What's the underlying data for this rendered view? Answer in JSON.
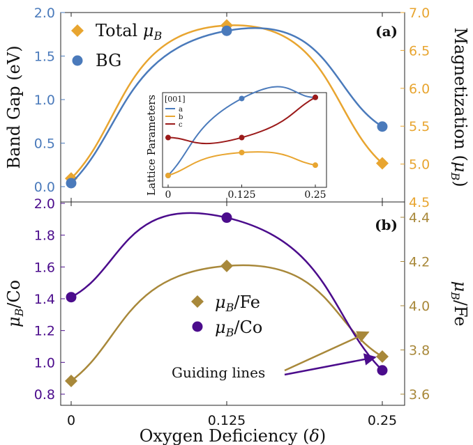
{
  "chart_data": [
    {
      "panel_label": "(a)",
      "type": "line",
      "x": [
        0,
        0.125,
        0.25
      ],
      "x_tick_labels": [
        "0",
        "0.125",
        "0.25"
      ],
      "ylabel": "Band Gap (eV)",
      "ylabel_right": "Magnetization (",
      "ylabel_right_sym": "μ",
      "ylabel_right_sub": "B",
      "ylabel_right_end": ")",
      "ylim": [
        0,
        2.0
      ],
      "ylim_right": [
        4.5,
        7.0
      ],
      "y_ticks": [
        "0.0",
        "0.5",
        "1.0",
        "1.5",
        "2.0"
      ],
      "y_ticks_right": [
        "4.5",
        "5.0",
        "5.5",
        "6.0",
        "6.5",
        "7.0"
      ],
      "legend_placement": "top-left",
      "series": [
        {
          "name": "Total",
          "name_sym": "μ",
          "name_sub": "B",
          "axis": "right",
          "marker": "diamond",
          "color": "#E8A530",
          "values": [
            4.81,
            6.83,
            5.01
          ]
        },
        {
          "name": "BG",
          "axis": "left",
          "marker": "circle",
          "color": "#4A7ABB",
          "values": [
            0.04,
            1.79,
            0.69
          ]
        }
      ]
    },
    {
      "panel_label": "inset",
      "type": "line",
      "title": "[001]",
      "ylabel": "Lattice Parameters",
      "x": [
        0,
        0.125,
        0.25
      ],
      "x_tick_labels": [
        "0",
        "0.125",
        "0.25"
      ],
      "series": [
        {
          "name": "a",
          "color": "#4A7ABB",
          "values": [
            0.0,
            0.67,
            0.68
          ]
        },
        {
          "name": "b",
          "color": "#E8A530",
          "values": [
            0.0,
            0.2,
            0.09
          ]
        },
        {
          "name": "c",
          "color": "#9B1A1A",
          "values": [
            0.33,
            0.33,
            0.68
          ]
        }
      ]
    },
    {
      "panel_label": "(b)",
      "type": "line",
      "x": [
        0,
        0.125,
        0.25
      ],
      "x_tick_labels": [
        "0",
        "0.125",
        "0.25"
      ],
      "xlabel": "Oxygen Deficiency (",
      "xlabel_sym": "δ",
      "xlabel_end": ")",
      "ylabel_sym": "μ",
      "ylabel_sub": "B",
      "ylabel": "/Co",
      "ylabel_right_sym": "μ",
      "ylabel_right_sub": "B",
      "ylabel_right": "/Fe",
      "ylim": [
        0.8,
        2.0
      ],
      "ylim_right": [
        3.5,
        4.45
      ],
      "y_ticks": [
        "0.8",
        "1.0",
        "1.2",
        "1.4",
        "1.6",
        "1.8",
        "2.0"
      ],
      "y_ticks_right": [
        "3.6",
        "3.8",
        "4.0",
        "4.2",
        "4.4"
      ],
      "legend_placement": "center",
      "annotation": "Guiding lines",
      "series": [
        {
          "name_sym": "μ",
          "name_sub": "B",
          "name": "/Fe",
          "axis": "right",
          "marker": "diamond",
          "color": "#A8883A",
          "values": [
            3.66,
            4.18,
            3.77
          ]
        },
        {
          "name_sym": "μ",
          "name_sub": "B",
          "name": "/Co",
          "axis": "left",
          "marker": "circle",
          "color": "#4B0C8C",
          "values": [
            1.41,
            1.91,
            0.95
          ]
        }
      ]
    }
  ]
}
